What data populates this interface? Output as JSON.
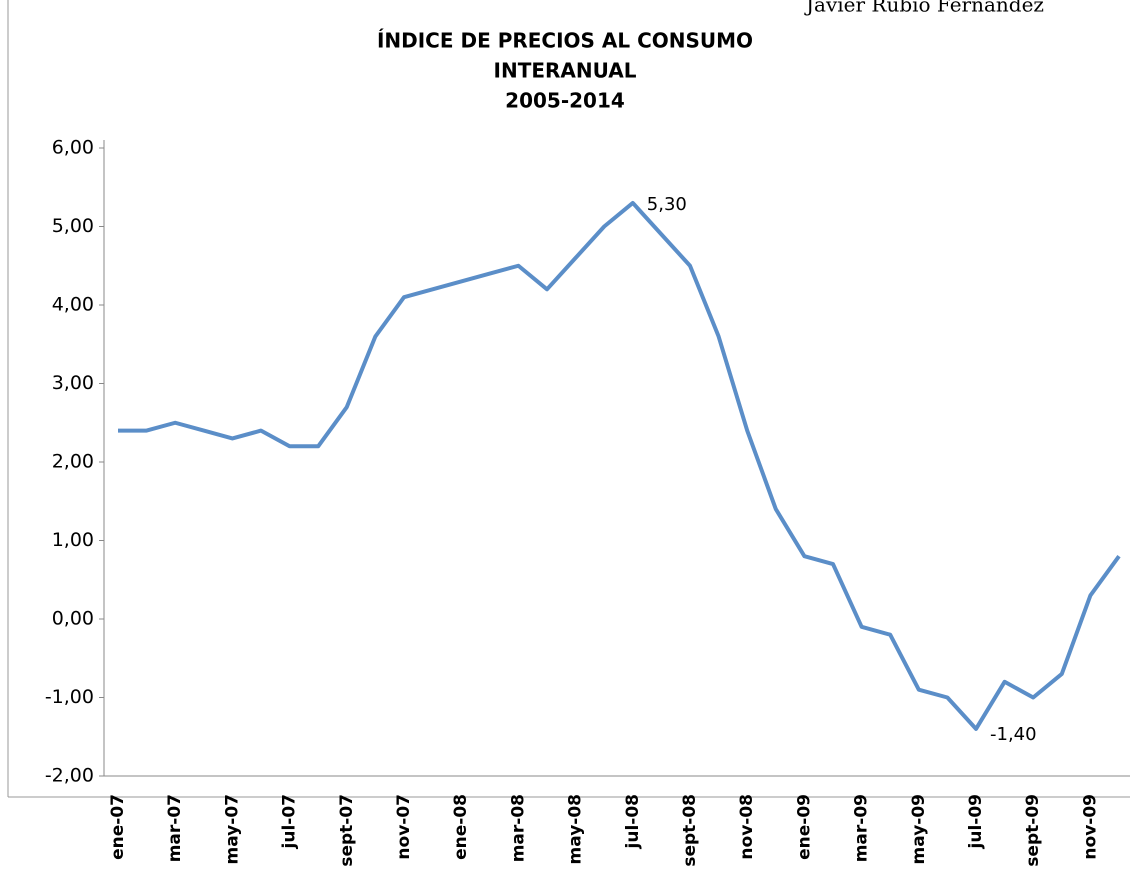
{
  "author": "Javier Rubio Fernández",
  "chart_data": {
    "type": "line",
    "title": [
      "ÍNDICE DE PRECIOS AL CONSUMO",
      "INTERANUAL",
      "2005-2014"
    ],
    "categories": [
      "ene-07",
      null,
      "mar-07",
      null,
      "may-07",
      null,
      "jul-07",
      null,
      "sept-07",
      null,
      "nov-07",
      null,
      "ene-08",
      null,
      "mar-08",
      null,
      "may-08",
      null,
      "jul-08",
      null,
      "sept-08",
      null,
      "nov-08",
      null,
      "ene-09",
      null,
      "mar-09",
      null,
      "may-09",
      null,
      "jul-09",
      null,
      "sept-09",
      null,
      "nov-09",
      null
    ],
    "series": [
      {
        "name": null,
        "color": "#5b8ec8",
        "values": [
          2.4,
          2.4,
          2.5,
          2.4,
          2.3,
          2.4,
          2.2,
          2.2,
          2.7,
          3.6,
          4.1,
          4.2,
          4.3,
          4.4,
          4.5,
          4.2,
          4.6,
          5.0,
          5.3,
          4.9,
          4.5,
          3.6,
          2.4,
          1.4,
          0.8,
          0.7,
          -0.1,
          -0.2,
          -0.9,
          -1.0,
          -1.4,
          -0.8,
          -1.0,
          -0.7,
          0.3,
          0.8
        ],
        "value_labels": [
          null,
          null,
          null,
          null,
          null,
          null,
          null,
          null,
          null,
          null,
          null,
          null,
          null,
          null,
          null,
          null,
          null,
          null,
          "5,30",
          null,
          null,
          null,
          null,
          null,
          null,
          null,
          null,
          null,
          null,
          null,
          "-1,40",
          null,
          null,
          null,
          null,
          null
        ]
      }
    ],
    "ylim": [
      -2,
      6
    ],
    "yticks": [
      {
        "value": -2,
        "label": "-2,00"
      },
      {
        "value": -1,
        "label": "-1,00"
      },
      {
        "value": 0,
        "label": "0,00"
      },
      {
        "value": 1,
        "label": "1,00"
      },
      {
        "value": 2,
        "label": "2,00"
      },
      {
        "value": 3,
        "label": "3,00"
      },
      {
        "value": 4,
        "label": "4,00"
      },
      {
        "value": 5,
        "label": "5,00"
      },
      {
        "value": 6,
        "label": "6,00"
      }
    ],
    "grid": false
  }
}
